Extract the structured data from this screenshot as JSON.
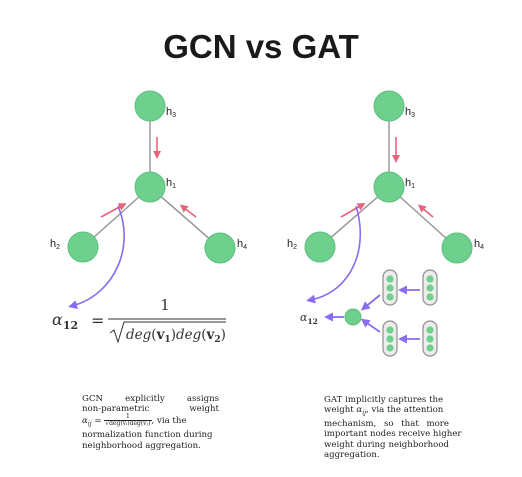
{
  "title": "GCN vs GAT",
  "colors": {
    "node_fill": "#6fd08e",
    "node_stroke": "#5bbf7c",
    "edge": "#9a9a9a",
    "red_arrow": "#e8637a",
    "purple_arrow": "#8a6cf0",
    "capsule_fill": "#ececec",
    "capsule_stroke": "#8f8f8f"
  },
  "gcn": {
    "nodes": {
      "h3": {
        "name": "h",
        "sub": "3"
      },
      "h1": {
        "name": "h",
        "sub": "1"
      },
      "h2": {
        "name": "h",
        "sub": "2"
      },
      "h4": {
        "name": "h",
        "sub": "4"
      }
    },
    "formula": {
      "lhs_symbol": "α",
      "lhs_sub": "12",
      "equals": "=",
      "numerator": "1",
      "den_deg1": "deg",
      "den_v1_symbol": "v",
      "den_v1_sub": "1",
      "den_deg2": "deg",
      "den_v2_symbol": "v",
      "den_v2_sub": "2"
    },
    "caption": {
      "line1_words": [
        "GCN",
        "explicitly",
        "assigns"
      ],
      "line2_words": [
        "non-parametric",
        "weight"
      ],
      "alpha_symbol": "α",
      "alpha_sub": "ij",
      "eq": "=",
      "frac_num": "1",
      "frac_den": "√deg(vᵢ)deg(vⱼ)",
      "line3_tail": ", via the",
      "line4": "normalization function during",
      "line5": "neighborhood aggregation."
    }
  },
  "gat": {
    "nodes": {
      "h3": {
        "name": "h",
        "sub": "3"
      },
      "h1": {
        "name": "h",
        "sub": "1"
      },
      "h2": {
        "name": "h",
        "sub": "2"
      },
      "h4": {
        "name": "h",
        "sub": "4"
      }
    },
    "alpha_label": {
      "symbol": "α",
      "sub": "12"
    },
    "caption": {
      "line1": "GAT implicitly captures the",
      "line2_pre": "weight",
      "alpha_symbol": "α",
      "alpha_sub": "ij",
      "line2_post": ", via the attention",
      "line3_words": [
        "mechanism,",
        "so",
        "that",
        "more"
      ],
      "line4": "important nodes receive higher",
      "line5_words": [
        "weight",
        "during",
        "neighborhood"
      ],
      "line6": "aggregation."
    }
  }
}
